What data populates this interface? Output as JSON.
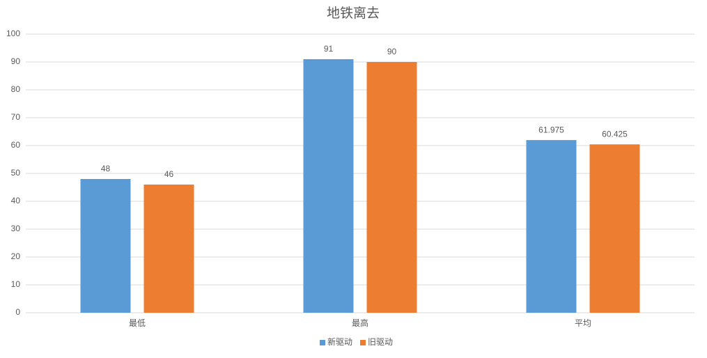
{
  "chart_data": {
    "type": "bar",
    "title": "地铁离去",
    "categories": [
      "最低",
      "最高",
      "平均"
    ],
    "series": [
      {
        "name": "新驱动",
        "color": "#5b9bd5",
        "values": [
          48,
          91,
          61.975
        ]
      },
      {
        "name": "旧驱动",
        "color": "#ed7d31",
        "values": [
          46,
          90,
          60.425
        ]
      }
    ],
    "ylim": [
      0,
      100
    ],
    "yticks": [
      0,
      10,
      20,
      30,
      40,
      50,
      60,
      70,
      80,
      90,
      100
    ],
    "grid": true,
    "legend": "bottom"
  }
}
